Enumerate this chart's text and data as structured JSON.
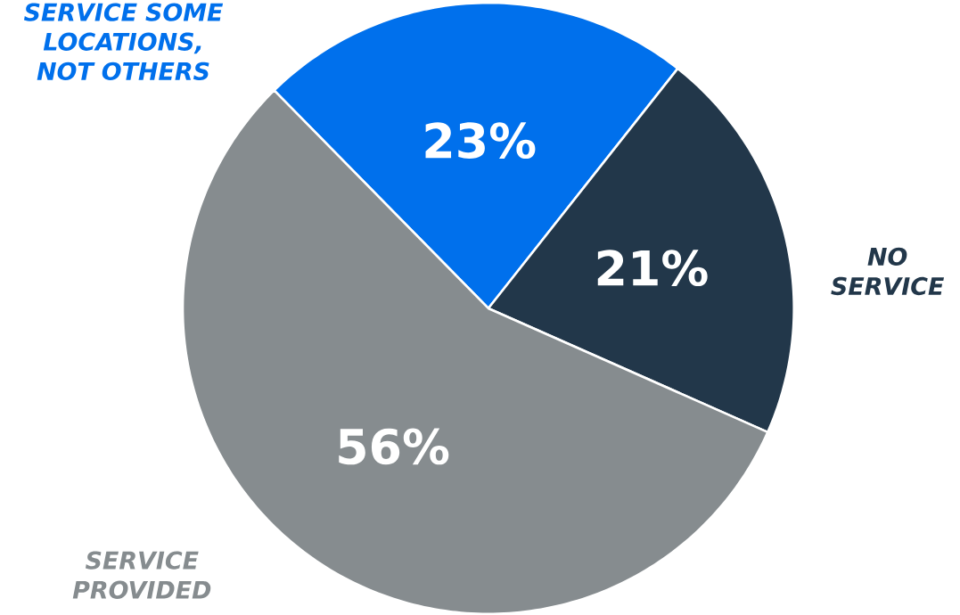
{
  "chart_data": {
    "type": "pie",
    "categories": [
      "SERVICE SOME LOCATIONS, NOT OTHERS",
      "NO SERVICE",
      "SERVICE PROVIDED"
    ],
    "values": [
      23,
      21,
      56
    ],
    "colors": [
      "#0070ec",
      "#22374a",
      "#868c8f"
    ],
    "value_labels": [
      "23%",
      "21%",
      "56%"
    ]
  }
}
